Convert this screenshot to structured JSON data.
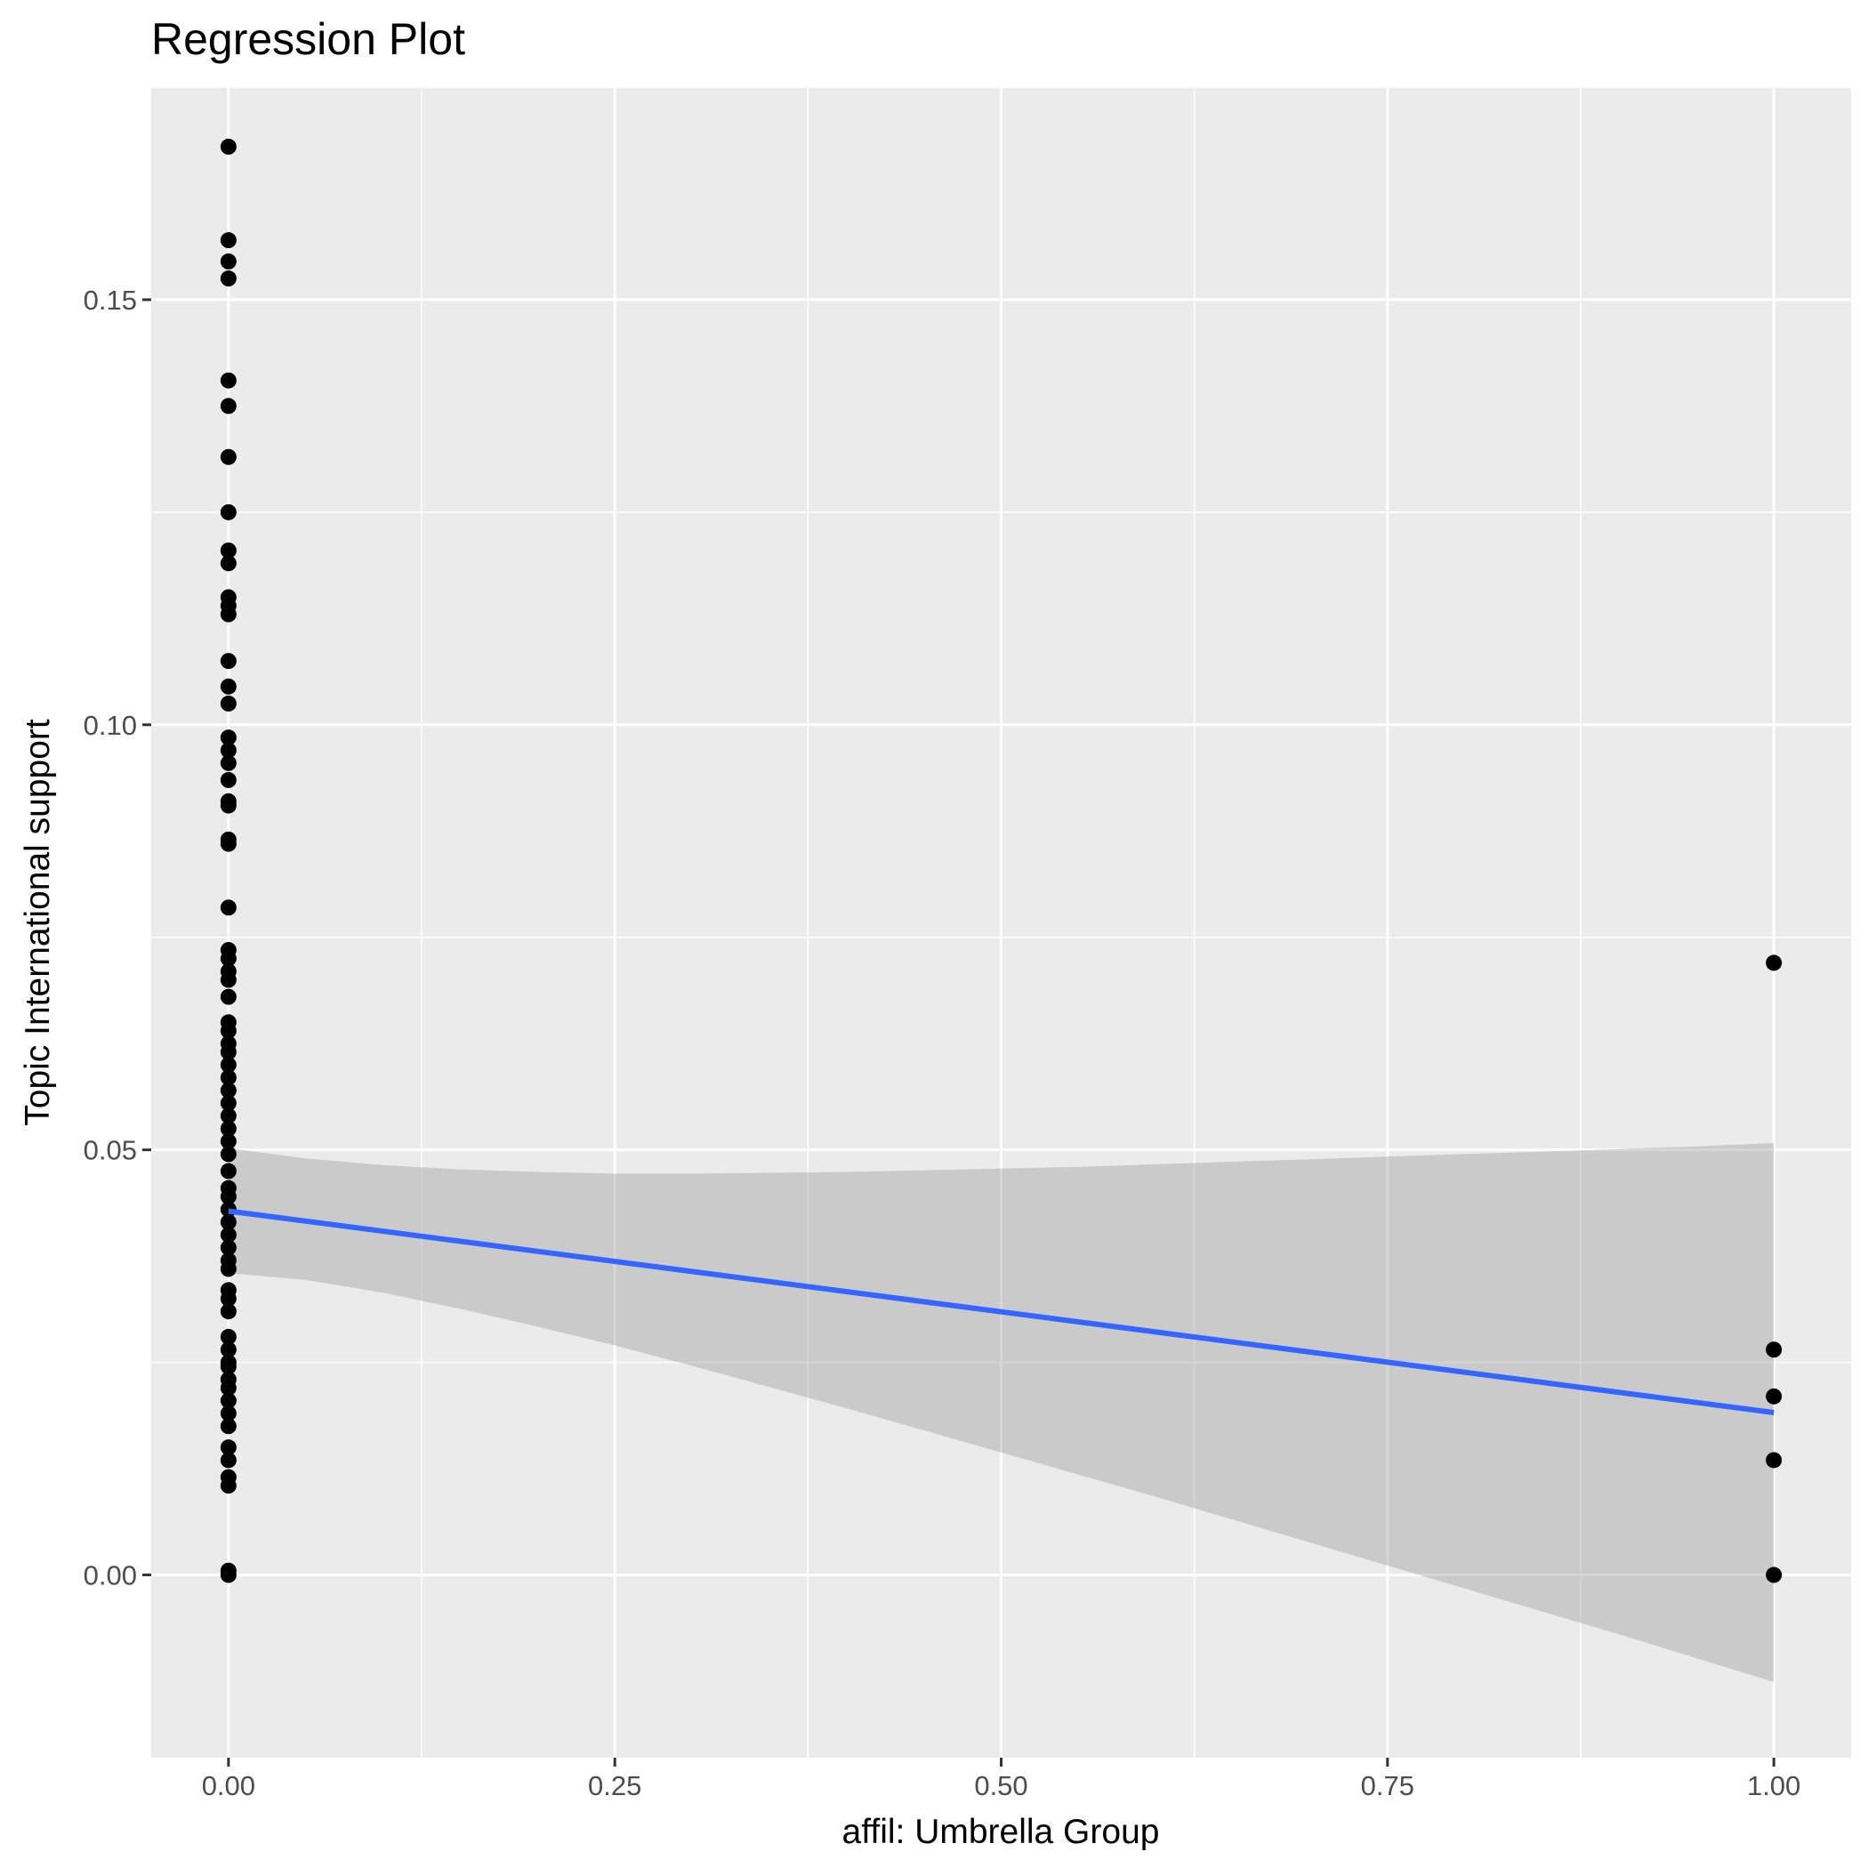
{
  "chart_data": {
    "type": "scatter",
    "title": "Regression Plot",
    "xlabel": "affil: Umbrella Group",
    "ylabel": "Topic International support",
    "xlim": [
      -0.05,
      1.05
    ],
    "ylim": [
      -0.0215,
      0.175
    ],
    "x_ticks": [
      0.0,
      0.25,
      0.5,
      0.75,
      1.0
    ],
    "x_tick_labels": [
      "0.00",
      "0.25",
      "0.50",
      "0.75",
      "1.00"
    ],
    "y_ticks": [
      0.0,
      0.05,
      0.1,
      0.15
    ],
    "y_tick_labels": [
      "0.00",
      "0.05",
      "0.10",
      "0.15"
    ],
    "grid": true,
    "series": [
      {
        "type": "scatter",
        "color": "#000000",
        "points_x0": [
          0.168,
          0.157,
          0.1545,
          0.1525,
          0.1405,
          0.1375,
          0.1315,
          0.125,
          0.1205,
          0.119,
          0.115,
          0.114,
          0.113,
          0.1075,
          0.1045,
          0.1025,
          0.0985,
          0.097,
          0.0955,
          0.0935,
          0.091,
          0.0905,
          0.0865,
          0.086,
          0.0785,
          0.0735,
          0.0725,
          0.071,
          0.07,
          0.068,
          0.065,
          0.064,
          0.0625,
          0.0615,
          0.06,
          0.0585,
          0.057,
          0.0555,
          0.054,
          0.0525,
          0.051,
          0.0495,
          0.0475,
          0.0455,
          0.0445,
          0.043,
          0.0415,
          0.04,
          0.0385,
          0.037,
          0.036,
          0.0335,
          0.0325,
          0.031,
          0.028,
          0.0265,
          0.025,
          0.0245,
          0.023,
          0.022,
          0.0205,
          0.019,
          0.0175,
          0.015,
          0.0135,
          0.0115,
          0.0105,
          0.0005,
          0.0
        ],
        "points_x1": [
          0.072,
          0.0265,
          0.021,
          0.0135,
          0.0
        ]
      }
    ],
    "fit": {
      "type": "line",
      "color": "#3366ff",
      "x": [
        0.0,
        1.0
      ],
      "y": [
        0.0428,
        0.0191
      ]
    },
    "confidence_band": {
      "color": "#999999",
      "x": [
        0.0,
        0.05,
        0.1,
        0.15,
        0.2,
        0.25,
        0.3,
        0.35,
        0.4,
        0.45,
        0.5,
        0.55,
        0.6,
        0.65,
        0.7,
        0.75,
        0.8,
        0.85,
        0.9,
        0.95,
        1.0
      ],
      "upper": [
        0.0502,
        0.049,
        0.0482,
        0.0477,
        0.0474,
        0.0472,
        0.0472,
        0.0473,
        0.0474,
        0.0476,
        0.0478,
        0.048,
        0.0483,
        0.0486,
        0.0489,
        0.0492,
        0.0495,
        0.0498,
        0.0501,
        0.0504,
        0.0508
      ],
      "lower": [
        0.0355,
        0.0347,
        0.0332,
        0.0313,
        0.0292,
        0.027,
        0.0246,
        0.0221,
        0.0196,
        0.017,
        0.0144,
        0.0118,
        0.0092,
        0.0065,
        0.0038,
        0.0011,
        -0.0016,
        -0.0043,
        -0.007,
        -0.0098,
        -0.0126
      ]
    }
  }
}
